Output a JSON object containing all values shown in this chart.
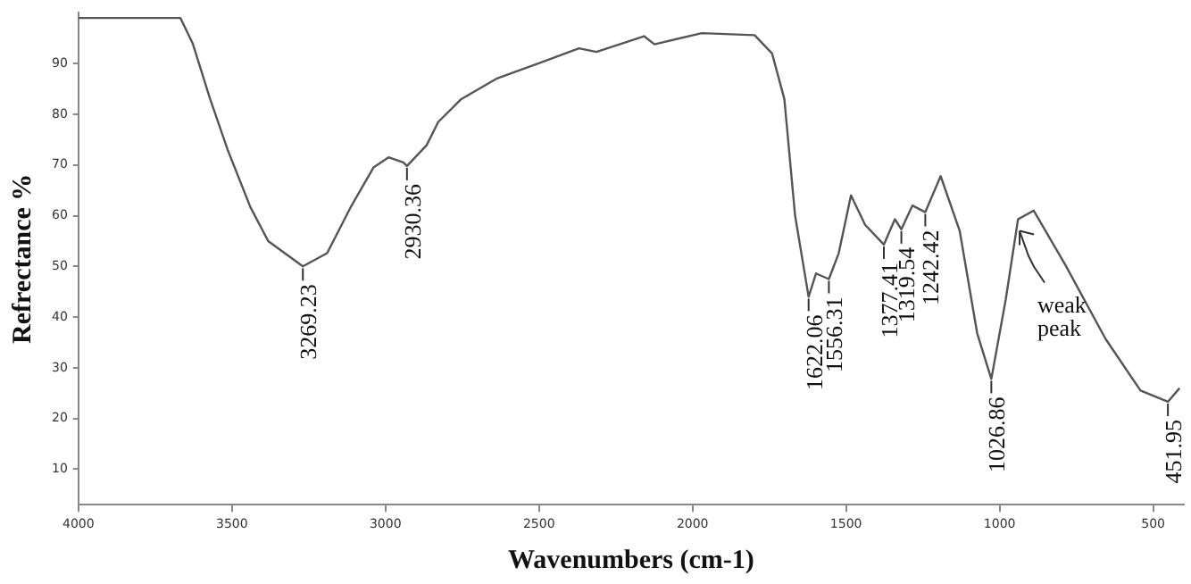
{
  "chart_data": {
    "type": "line",
    "xlabel": "Wavenumbers (cm-1)",
    "ylabel": "Refrectance %",
    "xlim": [
      4000,
      400
    ],
    "ylim": [
      3,
      100
    ],
    "xticks": [
      4000,
      3500,
      3000,
      2500,
      2000,
      1500,
      1000,
      500
    ],
    "yticks": [
      10,
      20,
      30,
      40,
      50,
      60,
      70,
      80,
      90
    ],
    "grid": false,
    "legend": false,
    "marker": "none",
    "line_style": "solid",
    "series": [
      {
        "color": "#555555",
        "x": [
          4000,
          3668,
          3628,
          3571,
          3514,
          3440,
          3382,
          3269,
          3190,
          3114,
          3039,
          2990,
          2942,
          2930,
          2866,
          2828,
          2753,
          2639,
          2485,
          2370,
          2313,
          2158,
          2124,
          1970,
          1798,
          1741,
          1701,
          1666,
          1622,
          1598,
          1556,
          1524,
          1484,
          1438,
          1377,
          1341,
          1320,
          1284,
          1242,
          1192,
          1130,
          1073,
          1027,
          980,
          940,
          889,
          786,
          655,
          541,
          452,
          414
        ],
        "values": [
          99,
          99,
          94,
          83,
          73,
          61.7,
          55,
          50,
          52.6,
          61.6,
          69.5,
          71.5,
          70.5,
          69.8,
          73.9,
          78.5,
          83,
          87,
          90.4,
          93,
          92.3,
          95.4,
          93.8,
          96,
          95.6,
          92,
          83,
          60,
          44,
          48.6,
          47.5,
          52.6,
          64,
          58.2,
          54.3,
          59.3,
          57.3,
          62,
          60.7,
          67.8,
          57,
          36.8,
          27.8,
          43.5,
          59.3,
          61,
          50.3,
          35.7,
          25.5,
          23.3,
          26
        ]
      }
    ],
    "annotations": [
      {
        "text": "3269.23",
        "x": 3269,
        "y": 50
      },
      {
        "text": "2930.36",
        "x": 2930,
        "y": 69.8
      },
      {
        "text": "1622.06",
        "x": 1622,
        "y": 44
      },
      {
        "text": "1556.31",
        "x": 1556,
        "y": 47.5
      },
      {
        "text": "1377.41",
        "x": 1377,
        "y": 54.3
      },
      {
        "text": "1319.54",
        "x": 1320,
        "y": 57.3
      },
      {
        "text": "1242.42",
        "x": 1242,
        "y": 60.7
      },
      {
        "text": "1026.86",
        "x": 1027,
        "y": 27.8
      },
      {
        "text": "451.95",
        "x": 452,
        "y": 23.3
      },
      {
        "text": "weak peak",
        "x": 935,
        "y": 57
      }
    ]
  }
}
